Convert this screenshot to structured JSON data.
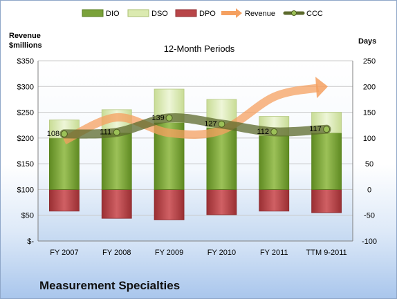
{
  "company": "Measurement Specialties",
  "chart_data": {
    "type": "bar",
    "title": "12-Month Periods",
    "categories": [
      "FY 2007",
      "FY 2008",
      "FY 2009",
      "FY 2010",
      "FY 2011",
      "TTM 9-2011"
    ],
    "left_axis": {
      "label_line1": "Revenue",
      "label_line2": "$millions",
      "ylim": [
        0,
        350
      ],
      "ticks": [
        "$-",
        "$50",
        "$100",
        "$150",
        "$200",
        "$250",
        "$300",
        "$350"
      ]
    },
    "right_axis": {
      "label": "Days",
      "ylim": [
        -100,
        250
      ],
      "ticks": [
        "-100",
        "-50",
        "0",
        "50",
        "100",
        "150",
        "200",
        "250"
      ]
    },
    "legend": [
      "DIO",
      "DSO",
      "DPO",
      "Revenue",
      "CCC"
    ],
    "legend_position": "top",
    "series": [
      {
        "name": "DIO",
        "axis": "right",
        "values": [
          100,
          110,
          130,
          120,
          105,
          110
        ]
      },
      {
        "name": "DSO",
        "axis": "right",
        "values": [
          35,
          45,
          65,
          55,
          37,
          40
        ]
      },
      {
        "name": "DPO",
        "axis": "right",
        "values": [
          -42,
          -56,
          -59,
          -49,
          -42,
          -45
        ]
      },
      {
        "name": "Revenue",
        "axis": "left",
        "values": [
          195,
          240,
          210,
          215,
          280,
          300
        ]
      },
      {
        "name": "CCC",
        "axis": "right",
        "values": [
          108,
          111,
          139,
          127,
          112,
          117
        ],
        "labels": [
          "108",
          "111",
          "139",
          "127",
          "112",
          "117"
        ]
      }
    ],
    "colors": {
      "dio": "#7aa23a",
      "dso": "#dbeab0",
      "dpo": "#b84548",
      "revenue": "#f5a060",
      "ccc": "#5c6a2c"
    },
    "grid": true
  }
}
